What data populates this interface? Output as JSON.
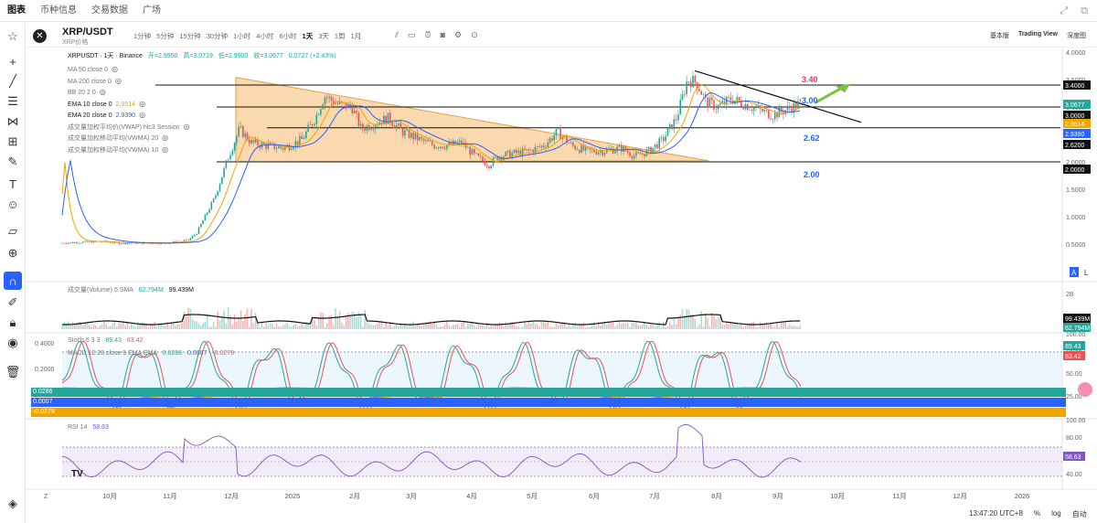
{
  "topnav": {
    "tabs": [
      "图表",
      "币种信息",
      "交易数据",
      "广场"
    ]
  },
  "header": {
    "symbol": "XRP/USDT",
    "symbol_sub": "XRP价格",
    "timeframes": [
      "1分钟",
      "5分钟",
      "15分钟",
      "30分钟",
      "1小时",
      "4小时",
      "6小时",
      "1天",
      "3天",
      "1周",
      "1月"
    ],
    "active_tf": "1天",
    "views": [
      "基本版",
      "Trading View",
      "深度图"
    ]
  },
  "legend": {
    "title": "XRPUSDT · 1天 · Binance",
    "open": "开=2.9950",
    "high": "高=3.0719",
    "low": "低=2.9900",
    "close": "收=3.0677",
    "change": "0.0727 (+2.43%)",
    "indicators": [
      {
        "label": "MA 50 close 0",
        "value": ""
      },
      {
        "label": "MA 200 close 0",
        "value": ""
      },
      {
        "label": "BB 20 2 0",
        "value": ""
      },
      {
        "label": "EMA 10 close 0",
        "value": "2.9514",
        "color": "#f0a500"
      },
      {
        "label": "EMA 20 close 0",
        "value": "2.9390",
        "color": "#2962ff"
      },
      {
        "label": "成交量加权平均价(VWAP) hlc3 Session",
        "value": ""
      },
      {
        "label": "成交量加权移动平均(VWMA) 20",
        "value": ""
      },
      {
        "label": "成交量加权移动平均(VWMA) 10",
        "value": ""
      }
    ]
  },
  "annotations": {
    "lvl340": "3.40",
    "lvl300": "3.00",
    "lvl262": "2.62",
    "lvl200": "2.00"
  },
  "price_axis": [
    "4.0000",
    "3.5000",
    "3.0000",
    "2.5000",
    "2.0000",
    "1.5000",
    "1.0000",
    "0.5000"
  ],
  "price_tags": {
    "p1": "3.4000",
    "p2": "3.0677",
    "p3": "3.0000",
    "p4": "2.9514",
    "p5": "2.9390",
    "p6": "2.6200",
    "p7": "2.0000"
  },
  "volume": {
    "label": "成交量(Volume) 5 SMA",
    "v1": "62.794M",
    "v2": "99.439M",
    "axis": "2B",
    "tag1": "99.439M",
    "tag2": "62.794M"
  },
  "stoch": {
    "label": "Stoch 6 3 3",
    "v1": "89.43",
    "v2": "83.42",
    "axis": [
      "100.00",
      "75.00",
      "50.00",
      "25.00"
    ],
    "tag1": "89.43",
    "tag2": "83.42"
  },
  "macd": {
    "label": "MACD 12 26 close 9 EMA EMA",
    "v1": "0.0286",
    "v2": "0.0007",
    "v3": "-0.0279",
    "axis": [
      "0.4000",
      "0.2000"
    ],
    "tag1": "0.0286",
    "tag2": "0.0007",
    "tag3": "-0.0279"
  },
  "rsi": {
    "label": "RSI 14",
    "v1": "58.63",
    "axis": [
      "100.00",
      "80.00",
      "60.00",
      "40.00"
    ],
    "tag": "58.63"
  },
  "time_axis": [
    "10月",
    "11月",
    "12月",
    "2025",
    "2月",
    "3月",
    "4月",
    "5月",
    "6月",
    "7月",
    "8月",
    "9月",
    "10月",
    "11月",
    "12月",
    "2026"
  ],
  "bottom": {
    "time": "13:47:20 UTC+8",
    "pct": "%",
    "log": "log",
    "auto": "自动"
  },
  "colors": {
    "up": "#26a69a",
    "down": "#ef5350",
    "ema10": "#f0a500",
    "ema20": "#2962ff",
    "tri": "#f7c98a",
    "green_arrow": "#7cc242"
  }
}
